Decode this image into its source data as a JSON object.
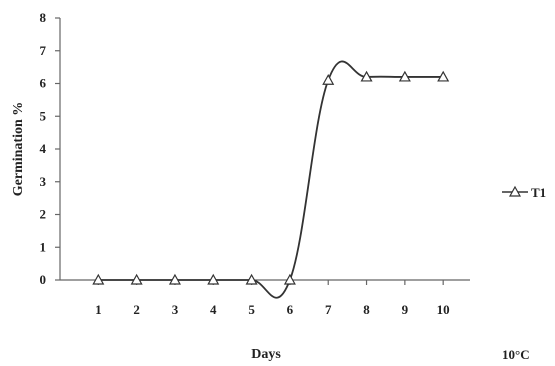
{
  "chart_data": {
    "type": "line",
    "title": "",
    "xlabel": "Days",
    "ylabel": "Germination %",
    "x": [
      1,
      2,
      3,
      4,
      5,
      6,
      7,
      8,
      9,
      10
    ],
    "categories": [
      "1",
      "2",
      "3",
      "4",
      "5",
      "6",
      "7",
      "8",
      "9",
      "10"
    ],
    "yticks": [
      "0",
      "1",
      "2",
      "3",
      "4",
      "5",
      "6",
      "7",
      "8"
    ],
    "ylim": [
      0,
      8
    ],
    "grid": false,
    "legend": "right",
    "series": [
      {
        "name": "T1",
        "values": [
          0,
          0,
          0,
          0,
          0,
          0,
          6.1,
          6.2,
          6.2,
          6.2
        ],
        "color": "#333333",
        "marker": "triangle-open"
      }
    ],
    "annotation": "10°C"
  }
}
